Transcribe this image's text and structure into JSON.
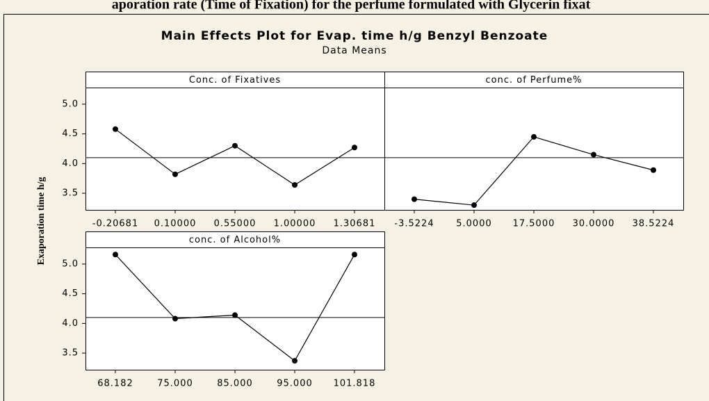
{
  "caption": "aporation rate (Time of Fixation) for the perfume formulated with Glycerin fixat",
  "chart_data": {
    "type": "line",
    "title": "Main Effects Plot for Evap. time h/g Benzyl Benzoate",
    "subtitle": "Data Means",
    "y_label": "Exaporation time h/g",
    "ylim": [
      3.22,
      5.28
    ],
    "yticks": [
      3.5,
      4.0,
      4.5,
      5.0
    ],
    "yticks_labels": [
      "3.5",
      "4.0",
      "4.5",
      "5.0"
    ],
    "mean_line": 4.1,
    "color": "#000000",
    "panels": [
      {
        "title": "Conc. of Fixatives",
        "categories": [
          "-0.20681",
          "0.10000",
          "0.55000",
          "1.00000",
          "1.30681"
        ],
        "values": [
          4.58,
          3.82,
          4.3,
          3.64,
          4.27
        ]
      },
      {
        "title": "conc. of Perfume%",
        "categories": [
          "-3.5224",
          "5.0000",
          "17.5000",
          "30.0000",
          "38.5224"
        ],
        "values": [
          3.4,
          3.3,
          4.45,
          4.15,
          3.89
        ]
      },
      {
        "title": "conc. of Alcohol%",
        "categories": [
          "68.182",
          "75.000",
          "85.000",
          "95.000",
          "101.818"
        ],
        "values": [
          5.16,
          4.08,
          4.14,
          3.37,
          5.16
        ]
      }
    ]
  }
}
